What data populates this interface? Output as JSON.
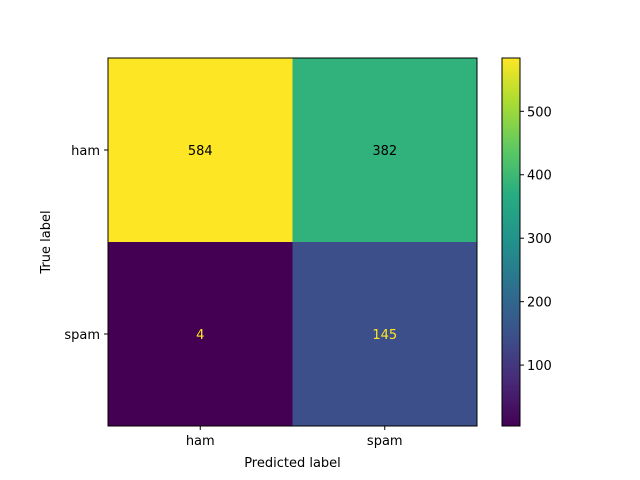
{
  "chart_data": {
    "type": "heatmap",
    "title": "",
    "xlabel": "Predicted label",
    "ylabel": "True label",
    "x_categories": [
      "ham",
      "spam"
    ],
    "y_categories": [
      "ham",
      "spam"
    ],
    "values": [
      [
        584,
        382
      ],
      [
        4,
        145
      ]
    ],
    "colormap": "viridis",
    "color_range": [
      4,
      584
    ],
    "colorbar": {
      "ticks": [
        100,
        200,
        300,
        400,
        500
      ],
      "tick_labels": [
        "100",
        "200",
        "300",
        "400",
        "500"
      ],
      "position": "right"
    },
    "cell_text_colors": {
      "dark_cells": "#fde725",
      "light_cells": "#000000"
    },
    "grid": false
  }
}
